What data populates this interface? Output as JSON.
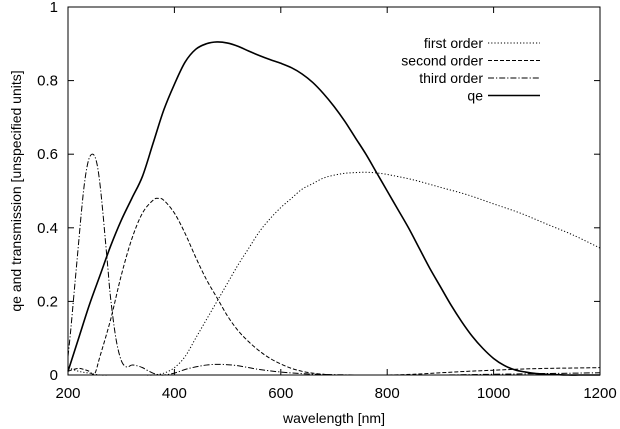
{
  "chart_data": {
    "type": "line",
    "title": "",
    "xlabel": "wavelength [nm]",
    "ylabel": "qe and transmission [unspecified units]",
    "xlim": [
      200,
      1200
    ],
    "ylim": [
      0,
      1
    ],
    "x_ticks": [
      200,
      400,
      600,
      800,
      1000,
      1200
    ],
    "y_ticks": [
      0,
      0.2,
      0.4,
      0.6,
      0.8,
      1
    ],
    "x_tick_labels": [
      "200",
      "400",
      "600",
      "800",
      "1000",
      "1200"
    ],
    "y_tick_labels": [
      "0",
      "0.2",
      "0.4",
      "0.6",
      "0.8",
      "1"
    ],
    "grid": false,
    "legend_position": "top-right",
    "series": [
      {
        "name": "first order",
        "dash": "1.2,2",
        "x": [
          200,
          220,
          240,
          260,
          280,
          300,
          320,
          340,
          360,
          380,
          400,
          420,
          440,
          460,
          480,
          500,
          520,
          540,
          560,
          580,
          600,
          620,
          640,
          660,
          680,
          700,
          720,
          740,
          760,
          780,
          800,
          850,
          900,
          950,
          1000,
          1050,
          1100,
          1150,
          1200
        ],
        "y": [
          0.02,
          0.01,
          0.005,
          0.0,
          0.0,
          0.0,
          0.0,
          0.0,
          0.0,
          0.005,
          0.02,
          0.05,
          0.1,
          0.15,
          0.2,
          0.25,
          0.3,
          0.345,
          0.39,
          0.425,
          0.455,
          0.48,
          0.505,
          0.52,
          0.535,
          0.543,
          0.548,
          0.55,
          0.551,
          0.549,
          0.545,
          0.53,
          0.51,
          0.49,
          0.465,
          0.44,
          0.41,
          0.38,
          0.345
        ]
      },
      {
        "name": "second order",
        "dash": "4,2",
        "x": [
          200,
          210,
          220,
          230,
          240,
          250,
          260,
          280,
          300,
          320,
          340,
          360,
          370,
          380,
          400,
          420,
          440,
          460,
          480,
          500,
          520,
          540,
          560,
          580,
          600,
          620,
          640,
          660,
          680,
          700,
          750,
          800,
          850,
          900,
          950,
          1000,
          1050,
          1100,
          1150,
          1200
        ],
        "y": [
          0.01,
          0.015,
          0.018,
          0.015,
          0.01,
          0.003,
          0.05,
          0.15,
          0.27,
          0.37,
          0.44,
          0.475,
          0.48,
          0.475,
          0.44,
          0.385,
          0.32,
          0.26,
          0.21,
          0.16,
          0.12,
          0.09,
          0.065,
          0.045,
          0.03,
          0.018,
          0.01,
          0.005,
          0.002,
          0.0,
          0.0,
          0.0,
          0.002,
          0.006,
          0.01,
          0.013,
          0.016,
          0.018,
          0.019,
          0.02
        ]
      },
      {
        "name": "third order",
        "dash": "6,2,1.2,2",
        "x": [
          200,
          205,
          210,
          215,
          220,
          225,
          230,
          235,
          240,
          245,
          250,
          255,
          260,
          265,
          270,
          275,
          280,
          290,
          300,
          310,
          320,
          330,
          340,
          350,
          360,
          370,
          380,
          400,
          420,
          440,
          460,
          480,
          500,
          520,
          540,
          560,
          600,
          650,
          700,
          750,
          800,
          900,
          1000,
          1100,
          1200
        ],
        "y": [
          0.05,
          0.12,
          0.2,
          0.28,
          0.36,
          0.44,
          0.51,
          0.56,
          0.59,
          0.6,
          0.595,
          0.57,
          0.52,
          0.45,
          0.37,
          0.29,
          0.21,
          0.1,
          0.04,
          0.022,
          0.027,
          0.025,
          0.02,
          0.012,
          0.005,
          0.001,
          0.0,
          0.005,
          0.015,
          0.022,
          0.027,
          0.029,
          0.028,
          0.025,
          0.02,
          0.015,
          0.008,
          0.003,
          0.001,
          0.0,
          0.0,
          0.0,
          0.002,
          0.004,
          0.006
        ]
      },
      {
        "name": "qe",
        "dash": "",
        "x": [
          200,
          220,
          240,
          260,
          280,
          300,
          320,
          340,
          360,
          380,
          400,
          420,
          440,
          460,
          480,
          500,
          520,
          540,
          560,
          580,
          600,
          620,
          640,
          660,
          680,
          700,
          720,
          740,
          760,
          780,
          800,
          820,
          840,
          860,
          880,
          900,
          920,
          940,
          960,
          980,
          1000,
          1020,
          1040,
          1060,
          1080,
          1100,
          1120,
          1140,
          1160,
          1180,
          1200
        ],
        "y": [
          0.01,
          0.1,
          0.19,
          0.27,
          0.35,
          0.42,
          0.48,
          0.54,
          0.63,
          0.72,
          0.79,
          0.85,
          0.885,
          0.9,
          0.905,
          0.902,
          0.893,
          0.88,
          0.868,
          0.857,
          0.847,
          0.835,
          0.818,
          0.795,
          0.765,
          0.73,
          0.69,
          0.645,
          0.6,
          0.55,
          0.5,
          0.45,
          0.4,
          0.345,
          0.29,
          0.24,
          0.19,
          0.145,
          0.105,
          0.072,
          0.045,
          0.026,
          0.014,
          0.008,
          0.004,
          0.002,
          0.001,
          0.0,
          0.0,
          0.0,
          0.0
        ]
      }
    ]
  }
}
